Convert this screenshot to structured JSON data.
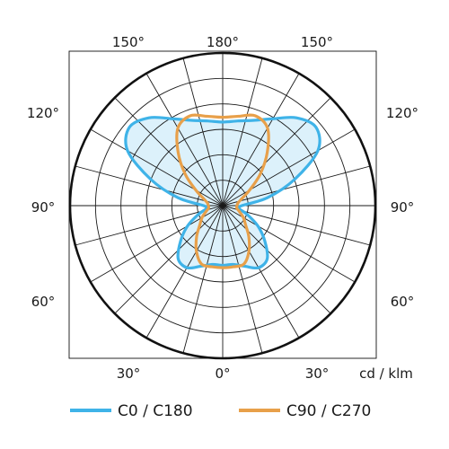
{
  "chart_data": {
    "type": "polar",
    "unit_label": "cd / klm",
    "angle_labels": {
      "top": [
        "150°",
        "180°",
        "150°"
      ],
      "left": [
        "120°",
        "90°",
        "60°"
      ],
      "right": [
        "120°",
        "90°",
        "60°"
      ],
      "bottom": [
        "30°",
        "0°",
        "30°"
      ]
    },
    "grid": true,
    "legend_position": "bottom",
    "series": [
      {
        "name": "C0 / C180",
        "color": "#3fb3e8",
        "fill": "#d6eefa",
        "angles_deg": [
          0,
          10,
          20,
          30,
          40,
          50,
          60,
          70,
          80,
          90,
          100,
          110,
          120,
          130,
          140,
          150,
          160,
          170,
          180
        ],
        "intensity": [
          50,
          50,
          54,
          60,
          58,
          46,
          34,
          22,
          14,
          16,
          38,
          64,
          92,
          102,
          96,
          84,
          76,
          72,
          70
        ]
      },
      {
        "name": "C90 / C270",
        "color": "#e8a04a",
        "angles_deg": [
          0,
          10,
          20,
          30,
          40,
          50,
          60,
          70,
          80,
          90,
          100,
          110,
          120,
          130,
          140,
          150,
          160,
          170,
          180
        ],
        "intensity": [
          52,
          52,
          52,
          44,
          34,
          25,
          20,
          15,
          12,
          12,
          13,
          17,
          26,
          41,
          58,
          75,
          80,
          76,
          74
        ]
      }
    ]
  }
}
